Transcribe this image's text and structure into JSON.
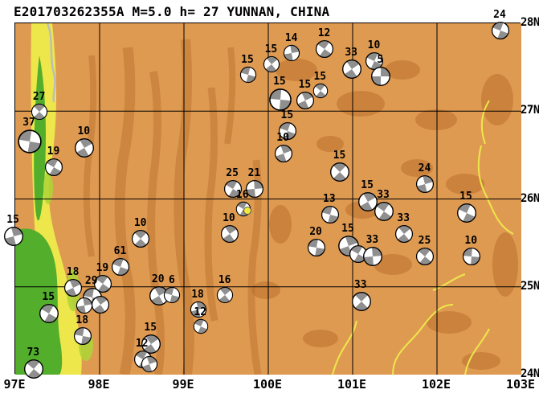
{
  "title": "E201703262355A M=5.0 h= 27 YUNNAN, CHINA",
  "map": {
    "region_name": "YUNNAN, CHINA",
    "lon_min": 97,
    "lon_max": 103,
    "lat_min": 24,
    "lat_max": 28,
    "x_ticks": [
      {
        "lon": 97,
        "label": "97E"
      },
      {
        "lon": 98,
        "label": "98E"
      },
      {
        "lon": 99,
        "label": "99E"
      },
      {
        "lon": 100,
        "label": "100E"
      },
      {
        "lon": 101,
        "label": "101E"
      },
      {
        "lon": 102,
        "label": "102E"
      },
      {
        "lon": 103,
        "label": "103E"
      }
    ],
    "y_ticks": [
      {
        "lat": 28,
        "label": "28N"
      },
      {
        "lat": 27,
        "label": "27N"
      },
      {
        "lat": 26,
        "label": "26N"
      },
      {
        "lat": 25,
        "label": "25N"
      },
      {
        "lat": 24,
        "label": "24N"
      }
    ],
    "grid_lons": [
      98,
      99,
      100,
      101,
      102
    ],
    "grid_lats": [
      25,
      26,
      27
    ]
  },
  "colors": {
    "terrain_base": "#DF9A52",
    "terrain_dark": "#B86F2A",
    "terrain_yellow": "#EDE74B",
    "terrain_green": "#53AE2C",
    "terrain_yellow_green": "#AFD437",
    "grid": "#000000",
    "ball_gray": "#8F8F8F",
    "epicenter": "#F2E93B",
    "fault_gray": "#BDBDBD"
  },
  "epicenter": {
    "lon": 99.75,
    "lat": 25.87
  },
  "events": [
    {
      "lon": 102.75,
      "lat": 27.92,
      "label": "24",
      "r": 10,
      "rot": 20,
      "type": "q"
    },
    {
      "lon": 97.29,
      "lat": 26.99,
      "label": "27",
      "r": 9,
      "rot": 45,
      "type": "q"
    },
    {
      "lon": 97.17,
      "lat": 26.65,
      "label": "37",
      "r": 14,
      "rot": 10,
      "type": "q"
    },
    {
      "lon": 97.82,
      "lat": 26.58,
      "label": "10",
      "r": 11,
      "rot": 60,
      "type": "q"
    },
    {
      "lon": 97.46,
      "lat": 26.36,
      "label": "19",
      "r": 10,
      "rot": 30,
      "type": "q"
    },
    {
      "lon": 96.98,
      "lat": 25.57,
      "label": "15",
      "r": 11,
      "rot": 75,
      "type": "q"
    },
    {
      "lon": 99.76,
      "lat": 27.41,
      "label": "15",
      "r": 9,
      "rot": 15,
      "type": "q"
    },
    {
      "lon": 100.04,
      "lat": 27.53,
      "label": "15",
      "r": 9,
      "rot": 50,
      "type": "q"
    },
    {
      "lon": 100.28,
      "lat": 27.66,
      "label": "14",
      "r": 9,
      "rot": 80,
      "type": "q"
    },
    {
      "lon": 100.67,
      "lat": 27.71,
      "label": "12",
      "r": 10,
      "rot": 35,
      "type": "q"
    },
    {
      "lon": 100.99,
      "lat": 27.48,
      "label": "33",
      "r": 11,
      "rot": 55,
      "type": "q"
    },
    {
      "lon": 101.26,
      "lat": 27.57,
      "label": "10",
      "r": 10,
      "rot": 25,
      "type": "q"
    },
    {
      "lon": 101.33,
      "lat": 27.4,
      "label": "5",
      "r": 11,
      "rot": 0,
      "type": "g"
    },
    {
      "lon": 100.14,
      "lat": 27.13,
      "label": "15",
      "r": 13,
      "rot": 5,
      "type": "q"
    },
    {
      "lon": 100.44,
      "lat": 27.12,
      "label": "15",
      "r": 10,
      "rot": 65,
      "type": "q"
    },
    {
      "lon": 100.62,
      "lat": 27.23,
      "label": "15",
      "r": 8,
      "rot": 40,
      "type": "q"
    },
    {
      "lon": 100.23,
      "lat": 26.77,
      "label": "15",
      "r": 10,
      "rot": 20,
      "type": "q"
    },
    {
      "lon": 100.18,
      "lat": 26.52,
      "label": "10",
      "r": 10,
      "rot": 70,
      "type": "q"
    },
    {
      "lon": 100.85,
      "lat": 26.31,
      "label": "15",
      "r": 11,
      "rot": 45,
      "type": "q"
    },
    {
      "lon": 99.58,
      "lat": 26.11,
      "label": "25",
      "r": 10,
      "rot": 30,
      "type": "q"
    },
    {
      "lon": 99.84,
      "lat": 26.11,
      "label": "21",
      "r": 10,
      "rot": 85,
      "type": "q"
    },
    {
      "lon": 99.7,
      "lat": 25.89,
      "label": "16",
      "r": 8,
      "rot": 30,
      "type": "q"
    },
    {
      "lon": 99.54,
      "lat": 25.6,
      "label": "10",
      "r": 10,
      "rot": 55,
      "type": "q"
    },
    {
      "lon": 100.73,
      "lat": 25.82,
      "label": "13",
      "r": 10,
      "rot": 15,
      "type": "q"
    },
    {
      "lon": 101.18,
      "lat": 25.97,
      "label": "15",
      "r": 11,
      "rot": 60,
      "type": "q"
    },
    {
      "lon": 101.37,
      "lat": 25.86,
      "label": "33",
      "r": 11,
      "rot": 35,
      "type": "q"
    },
    {
      "lon": 101.86,
      "lat": 26.17,
      "label": "24",
      "r": 10,
      "rot": 75,
      "type": "q"
    },
    {
      "lon": 102.35,
      "lat": 25.84,
      "label": "15",
      "r": 11,
      "rot": 25,
      "type": "q"
    },
    {
      "lon": 101.61,
      "lat": 25.6,
      "label": "33",
      "r": 10,
      "rot": 50,
      "type": "q"
    },
    {
      "lon": 100.57,
      "lat": 25.45,
      "label": "20",
      "r": 10,
      "rot": 10,
      "type": "q"
    },
    {
      "lon": 100.95,
      "lat": 25.46,
      "label": "15",
      "r": 12,
      "rot": 70,
      "type": "q"
    },
    {
      "lon": 101.07,
      "lat": 25.37,
      "label": "",
      "r": 10,
      "rot": 30,
      "type": "q"
    },
    {
      "lon": 101.24,
      "lat": 25.35,
      "label": "33",
      "r": 11,
      "rot": 85,
      "type": "q"
    },
    {
      "lon": 101.86,
      "lat": 25.35,
      "label": "25",
      "r": 10,
      "rot": 40,
      "type": "q"
    },
    {
      "lon": 102.41,
      "lat": 25.35,
      "label": "10",
      "r": 10,
      "rot": 5,
      "type": "q"
    },
    {
      "lon": 98.49,
      "lat": 25.55,
      "label": "10",
      "r": 10,
      "rot": 45,
      "type": "q"
    },
    {
      "lon": 98.25,
      "lat": 25.23,
      "label": "61",
      "r": 10,
      "rot": 20,
      "type": "q"
    },
    {
      "lon": 97.69,
      "lat": 24.99,
      "label": "18",
      "r": 10,
      "rot": 65,
      "type": "q"
    },
    {
      "lon": 98.04,
      "lat": 25.03,
      "label": "19",
      "r": 10,
      "rot": 35,
      "type": "q"
    },
    {
      "lon": 97.91,
      "lat": 24.88,
      "label": "29",
      "r": 11,
      "rot": 10,
      "type": "q"
    },
    {
      "lon": 98.01,
      "lat": 24.8,
      "label": "",
      "r": 10,
      "rot": 55,
      "type": "q"
    },
    {
      "lon": 97.82,
      "lat": 24.79,
      "label": "",
      "r": 9,
      "rot": 80,
      "type": "q"
    },
    {
      "lon": 97.4,
      "lat": 24.7,
      "label": "15",
      "r": 11,
      "rot": 30,
      "type": "q"
    },
    {
      "lon": 98.7,
      "lat": 24.9,
      "label": "20",
      "r": 11,
      "rot": 60,
      "type": "q"
    },
    {
      "lon": 98.86,
      "lat": 24.91,
      "label": "6",
      "r": 9,
      "rot": 15,
      "type": "q"
    },
    {
      "lon": 99.49,
      "lat": 24.91,
      "label": "16",
      "r": 9,
      "rot": 50,
      "type": "q"
    },
    {
      "lon": 99.17,
      "lat": 24.74,
      "label": "18",
      "r": 9,
      "rot": 75,
      "type": "q"
    },
    {
      "lon": 99.2,
      "lat": 24.55,
      "label": "12",
      "r": 8,
      "rot": 25,
      "type": "q"
    },
    {
      "lon": 101.1,
      "lat": 24.83,
      "label": "33",
      "r": 11,
      "rot": 45,
      "type": "q"
    },
    {
      "lon": 97.8,
      "lat": 24.44,
      "label": "18",
      "r": 10,
      "rot": 10,
      "type": "q"
    },
    {
      "lon": 98.61,
      "lat": 24.35,
      "label": "15",
      "r": 11,
      "rot": 55,
      "type": "q"
    },
    {
      "lon": 98.51,
      "lat": 24.17,
      "label": "12",
      "r": 10,
      "rot": 30,
      "type": "q"
    },
    {
      "lon": 98.59,
      "lat": 24.12,
      "label": "",
      "r": 9,
      "rot": 70,
      "type": "q"
    },
    {
      "lon": 97.22,
      "lat": 24.06,
      "label": "73",
      "r": 11,
      "rot": 40,
      "type": "q"
    }
  ]
}
